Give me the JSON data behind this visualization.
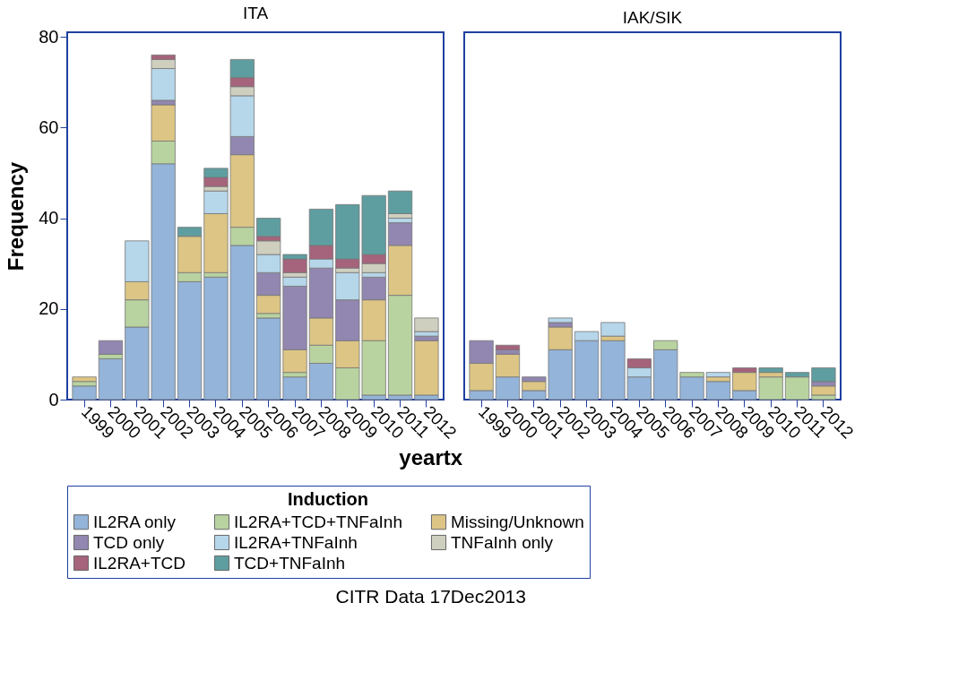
{
  "chart_data": [
    {
      "type": "bar",
      "stacked": true,
      "title": "ITA",
      "ylabel": "Frequency",
      "xlabel": "yeartx",
      "legend_title": "Induction",
      "legend": "bottom",
      "annotations": [
        "CITR  Data 17Dec2013"
      ],
      "ylim": [
        0,
        81
      ],
      "yticks": [
        0,
        20,
        40,
        60,
        80
      ],
      "grid": false,
      "categories": [
        "1999",
        "2000",
        "2001",
        "2002",
        "2003",
        "2004",
        "2005",
        "2006",
        "2007",
        "2008",
        "2009",
        "2010",
        "2011",
        "2012"
      ],
      "series": [
        {
          "name": "IL2RA only",
          "color": "#94b4d9",
          "values": [
            3,
            9,
            16,
            52,
            26,
            27,
            34,
            18,
            5,
            8,
            null,
            1,
            1,
            1
          ]
        },
        {
          "name": "IL2RA+TCD+TNFaInh",
          "color": "#b8d3a0",
          "values": [
            1,
            1,
            6,
            5,
            2,
            1,
            4,
            1,
            1,
            4,
            7,
            12,
            22,
            null
          ]
        },
        {
          "name": "Missing/Unknown",
          "color": "#dcc585",
          "values": [
            1,
            null,
            4,
            8,
            8,
            13,
            16,
            4,
            5,
            6,
            6,
            9,
            11,
            12
          ]
        },
        {
          "name": "TCD only",
          "color": "#9287b0",
          "values": [
            null,
            3,
            null,
            1,
            null,
            null,
            4,
            5,
            14,
            11,
            9,
            5,
            5,
            1
          ]
        },
        {
          "name": "IL2RA+TNFaInh",
          "color": "#b6d6ea",
          "values": [
            null,
            null,
            9,
            7,
            null,
            5,
            9,
            4,
            2,
            2,
            6,
            1,
            1,
            1
          ]
        },
        {
          "name": "TNFaInh only",
          "color": "#cfcfbf",
          "values": [
            null,
            null,
            null,
            2,
            null,
            1,
            2,
            3,
            1,
            null,
            1,
            2,
            1,
            3
          ]
        },
        {
          "name": "IL2RA+TCD",
          "color": "#a5637c",
          "values": [
            null,
            null,
            null,
            1,
            null,
            2,
            2,
            1,
            3,
            3,
            2,
            2,
            null,
            null
          ]
        },
        {
          "name": "TCD+TNFaInh",
          "color": "#5f9ea0",
          "values": [
            null,
            null,
            null,
            null,
            2,
            2,
            4,
            4,
            1,
            8,
            12,
            13,
            5,
            null
          ]
        }
      ]
    },
    {
      "type": "bar",
      "stacked": true,
      "title": "IAK/SIK",
      "ylim": [
        0,
        81
      ],
      "yticks": [
        0,
        20,
        40,
        60,
        80
      ],
      "tick_labels": "x",
      "grid": false,
      "legend": false,
      "categories": [
        "1999",
        "2000",
        "2001",
        "2002",
        "2003",
        "2004",
        "2005",
        "2006",
        "2007",
        "2008",
        "2009",
        "2010",
        "2011",
        "2012"
      ],
      "series": [
        {
          "name": "IL2RA only",
          "color": "#94b4d9",
          "values": [
            2,
            5,
            2,
            11,
            13,
            13,
            5,
            11,
            5,
            4,
            2,
            null,
            null,
            null
          ]
        },
        {
          "name": "IL2RA+TCD+TNFaInh",
          "color": "#b8d3a0",
          "values": [
            null,
            null,
            null,
            null,
            null,
            null,
            null,
            2,
            1,
            null,
            null,
            5,
            5,
            1
          ]
        },
        {
          "name": "Missing/Unknown",
          "color": "#dcc585",
          "values": [
            6,
            5,
            2,
            5,
            null,
            1,
            null,
            null,
            null,
            1,
            4,
            1,
            null,
            2
          ]
        },
        {
          "name": "TCD only",
          "color": "#9287b0",
          "values": [
            5,
            1,
            1,
            1,
            null,
            null,
            null,
            null,
            null,
            null,
            null,
            null,
            null,
            1
          ]
        },
        {
          "name": "IL2RA+TNFaInh",
          "color": "#b6d6ea",
          "values": [
            null,
            null,
            null,
            1,
            2,
            3,
            2,
            null,
            null,
            1,
            null,
            null,
            null,
            null
          ]
        },
        {
          "name": "TNFaInh only",
          "color": "#cfcfbf",
          "values": [
            null,
            null,
            null,
            null,
            null,
            null,
            null,
            null,
            null,
            null,
            null,
            null,
            null,
            null
          ]
        },
        {
          "name": "IL2RA+TCD",
          "color": "#a5637c",
          "values": [
            null,
            1,
            null,
            null,
            null,
            null,
            2,
            null,
            null,
            null,
            1,
            null,
            null,
            null
          ]
        },
        {
          "name": "TCD+TNFaInh",
          "color": "#5f9ea0",
          "values": [
            null,
            null,
            null,
            null,
            null,
            null,
            null,
            null,
            null,
            null,
            null,
            1,
            1,
            3
          ]
        }
      ]
    }
  ]
}
